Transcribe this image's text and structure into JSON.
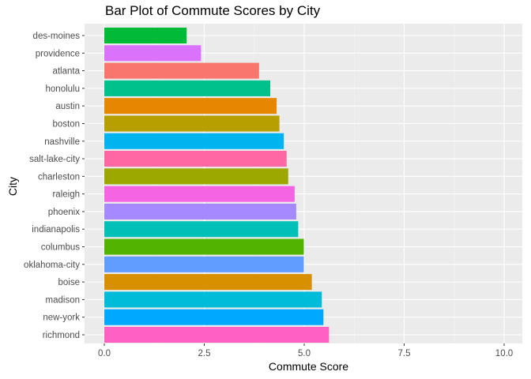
{
  "chart_data": {
    "type": "bar",
    "orientation": "horizontal",
    "title": "Bar Plot of Commute Scores by City",
    "xlabel": "Commute Score",
    "ylabel": "City",
    "xlim": [
      0,
      10
    ],
    "x_ticks": [
      "0.0",
      "2.5",
      "5.0",
      "7.5",
      "10.0"
    ],
    "grid": true,
    "legend": "none",
    "background": "#ebebeb",
    "categories": [
      "des-moines",
      "providence",
      "atlanta",
      "honolulu",
      "austin",
      "boston",
      "nashville",
      "salt-lake-city",
      "charleston",
      "raleigh",
      "phoenix",
      "indianapolis",
      "columbus",
      "oklahoma-city",
      "boise",
      "madison",
      "new-york",
      "richmond"
    ],
    "values": [
      2.06,
      2.42,
      3.87,
      4.15,
      4.31,
      4.38,
      4.49,
      4.56,
      4.6,
      4.76,
      4.8,
      4.85,
      4.99,
      4.99,
      5.19,
      5.44,
      5.48,
      5.62
    ],
    "colors": [
      "#00BA38",
      "#DB72FB",
      "#F8766D",
      "#00C08B",
      "#E58700",
      "#B79F00",
      "#00B4EF",
      "#FF67A4",
      "#9CA700",
      "#F564E3",
      "#A58AFF",
      "#00C0B8",
      "#53B400",
      "#619CFF",
      "#D89000",
      "#00BCD8",
      "#00A9FF",
      "#FF61C3"
    ]
  }
}
